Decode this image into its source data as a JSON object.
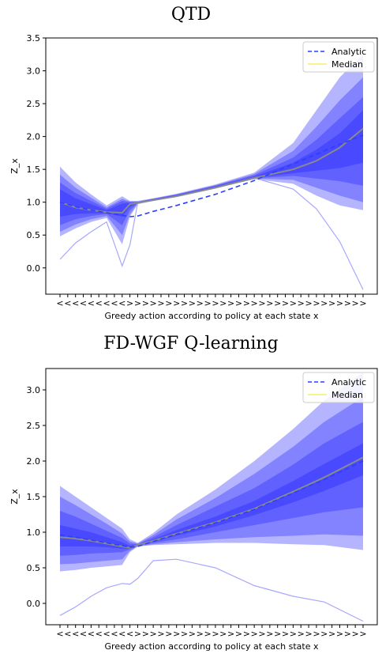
{
  "chart_data": [
    {
      "type": "area",
      "title": "QTD",
      "xlabel": "Greedy action according to policy at each state x",
      "ylabel": "Z_x",
      "ylim": [
        -0.4,
        3.5
      ],
      "y_ticks": [
        0.0,
        0.5,
        1.0,
        1.5,
        2.0,
        2.5,
        3.0,
        3.5
      ],
      "x_tick_labels": [
        "<",
        "<",
        "<",
        "<",
        "<",
        "<",
        "<",
        "<",
        "<",
        ">",
        ">",
        ">",
        ">",
        ">",
        ">",
        ">",
        ">",
        ">",
        ">",
        ">",
        ">",
        ">",
        ">",
        ">",
        ">",
        ">",
        ">",
        ">",
        ">",
        ">",
        ">",
        ">",
        ">",
        ">",
        ">",
        ">",
        ">",
        ">",
        ">",
        ">"
      ],
      "legend": {
        "position": "top-right",
        "entries": [
          {
            "name": "Analytic",
            "style": "dashed",
            "color": "#2b3fff"
          },
          {
            "name": "Median",
            "style": "solid",
            "color": "#f7ef6a"
          }
        ]
      },
      "colors": {
        "band": "#1a1aff",
        "median": "#8a8a8a",
        "analytic": "#2b3fff",
        "extreme": "#a7a7ff"
      },
      "x": [
        0,
        2,
        4,
        6,
        8,
        9,
        10,
        12,
        15,
        20,
        25,
        30,
        33,
        36,
        39
      ],
      "series": [
        {
          "name": "Analytic",
          "values": [
            1.0,
            0.93,
            0.88,
            0.84,
            0.8,
            0.78,
            0.79,
            0.86,
            0.95,
            1.12,
            1.33,
            1.58,
            1.73,
            1.88,
            2.02
          ]
        },
        {
          "name": "Median",
          "values": [
            1.0,
            0.92,
            0.88,
            0.85,
            0.84,
            0.97,
            0.99,
            1.03,
            1.09,
            1.22,
            1.37,
            1.5,
            1.63,
            1.83,
            2.12
          ]
        },
        {
          "name": "Minimum",
          "values": [
            0.13,
            0.38,
            0.55,
            0.7,
            0.03,
            0.35,
            0.99,
            1.03,
            1.09,
            1.22,
            1.37,
            1.2,
            0.9,
            0.4,
            -0.33
          ]
        }
      ],
      "bands": [
        {
          "lower": [
            0.48,
            0.6,
            0.7,
            0.76,
            0.36,
            0.78,
            0.97,
            1.02,
            1.08,
            1.21,
            1.35,
            1.28,
            1.1,
            0.95,
            0.88
          ],
          "upper": [
            1.54,
            1.3,
            1.12,
            0.95,
            1.09,
            1.02,
            1.02,
            1.06,
            1.13,
            1.27,
            1.45,
            1.9,
            2.4,
            2.9,
            3.25
          ]
        },
        {
          "lower": [
            0.55,
            0.66,
            0.74,
            0.79,
            0.5,
            0.82,
            0.98,
            1.025,
            1.085,
            1.215,
            1.36,
            1.34,
            1.22,
            1.1,
            1.0
          ],
          "upper": [
            1.42,
            1.22,
            1.07,
            0.92,
            1.05,
            1.01,
            1.01,
            1.055,
            1.12,
            1.26,
            1.43,
            1.78,
            2.15,
            2.55,
            2.9
          ]
        },
        {
          "lower": [
            0.65,
            0.74,
            0.79,
            0.82,
            0.65,
            0.88,
            0.985,
            1.03,
            1.09,
            1.22,
            1.365,
            1.4,
            1.36,
            1.32,
            1.25
          ],
          "upper": [
            1.3,
            1.14,
            1.02,
            0.9,
            1.02,
            1.0,
            1.005,
            1.05,
            1.115,
            1.25,
            1.41,
            1.68,
            1.95,
            2.28,
            2.6
          ]
        },
        {
          "lower": [
            0.78,
            0.82,
            0.83,
            0.835,
            0.78,
            0.93,
            0.99,
            1.03,
            1.09,
            1.22,
            1.37,
            1.44,
            1.48,
            1.52,
            1.6
          ],
          "upper": [
            1.2,
            1.06,
            0.97,
            0.88,
            0.98,
            0.99,
            1.0,
            1.045,
            1.11,
            1.24,
            1.39,
            1.6,
            1.8,
            2.05,
            2.4
          ]
        }
      ]
    },
    {
      "type": "area",
      "title": "FD-WGF Q-learning",
      "xlabel": "Greedy action according to policy at each state x",
      "ylabel": "Z_x",
      "ylim": [
        -0.3,
        3.3
      ],
      "y_ticks": [
        0.0,
        0.5,
        1.0,
        1.5,
        2.0,
        2.5,
        3.0
      ],
      "x_tick_labels": [
        "<",
        "<",
        "<",
        "<",
        "<",
        "<",
        "<",
        "<",
        "<",
        "<",
        ">",
        ">",
        ">",
        ">",
        ">",
        ">",
        ">",
        ">",
        ">",
        ">",
        ">",
        ">",
        ">",
        ">",
        ">",
        ">",
        ">",
        ">",
        ">",
        ">",
        ">",
        ">",
        ">",
        ">",
        ">",
        ">",
        ">",
        ">",
        ">",
        ">"
      ],
      "legend": {
        "position": "top-right",
        "entries": [
          {
            "name": "Analytic",
            "style": "dashed",
            "color": "#2b3fff"
          },
          {
            "name": "Median",
            "style": "solid",
            "color": "#f7ef6a"
          }
        ]
      },
      "colors": {
        "band": "#1a1aff",
        "median": "#8a8a8a",
        "analytic": "#2b3fff",
        "extreme": "#a7a7ff"
      },
      "x": [
        0,
        2,
        4,
        6,
        8,
        9,
        10,
        12,
        15,
        20,
        25,
        30,
        34,
        39
      ],
      "series": [
        {
          "name": "Analytic",
          "values": [
            0.96,
            0.93,
            0.89,
            0.85,
            0.81,
            0.79,
            0.8,
            0.87,
            0.97,
            1.13,
            1.32,
            1.55,
            1.74,
            2.0
          ]
        },
        {
          "name": "Median",
          "values": [
            0.93,
            0.91,
            0.88,
            0.84,
            0.8,
            0.78,
            0.82,
            0.88,
            0.98,
            1.14,
            1.33,
            1.57,
            1.77,
            2.05
          ]
        },
        {
          "name": "Minimum",
          "values": [
            -0.17,
            -0.05,
            0.1,
            0.22,
            0.28,
            0.27,
            0.35,
            0.6,
            0.62,
            0.5,
            0.25,
            0.1,
            0.02,
            -0.25
          ]
        }
      ],
      "bands": [
        {
          "lower": [
            0.45,
            0.47,
            0.5,
            0.52,
            0.54,
            0.72,
            0.8,
            0.82,
            0.83,
            0.85,
            0.85,
            0.83,
            0.82,
            0.75
          ],
          "upper": [
            1.65,
            1.5,
            1.35,
            1.2,
            1.05,
            0.9,
            0.85,
            0.99,
            1.25,
            1.6,
            2.0,
            2.45,
            2.85,
            3.25
          ]
        },
        {
          "lower": [
            0.55,
            0.56,
            0.58,
            0.6,
            0.62,
            0.74,
            0.8,
            0.83,
            0.86,
            0.9,
            0.93,
            0.95,
            0.97,
            0.95
          ],
          "upper": [
            1.5,
            1.38,
            1.25,
            1.12,
            0.98,
            0.87,
            0.84,
            0.96,
            1.18,
            1.48,
            1.82,
            2.2,
            2.55,
            2.9
          ]
        },
        {
          "lower": [
            0.67,
            0.68,
            0.7,
            0.71,
            0.72,
            0.76,
            0.81,
            0.85,
            0.9,
            1.0,
            1.1,
            1.2,
            1.28,
            1.35
          ],
          "upper": [
            1.3,
            1.22,
            1.12,
            1.02,
            0.92,
            0.84,
            0.83,
            0.93,
            1.1,
            1.36,
            1.62,
            1.95,
            2.25,
            2.55
          ]
        },
        {
          "lower": [
            0.8,
            0.8,
            0.8,
            0.79,
            0.77,
            0.77,
            0.815,
            0.87,
            0.95,
            1.08,
            1.24,
            1.42,
            1.58,
            1.8
          ],
          "upper": [
            1.1,
            1.05,
            1.0,
            0.93,
            0.86,
            0.81,
            0.825,
            0.9,
            1.03,
            1.22,
            1.44,
            1.72,
            1.96,
            2.25
          ]
        }
      ]
    }
  ]
}
